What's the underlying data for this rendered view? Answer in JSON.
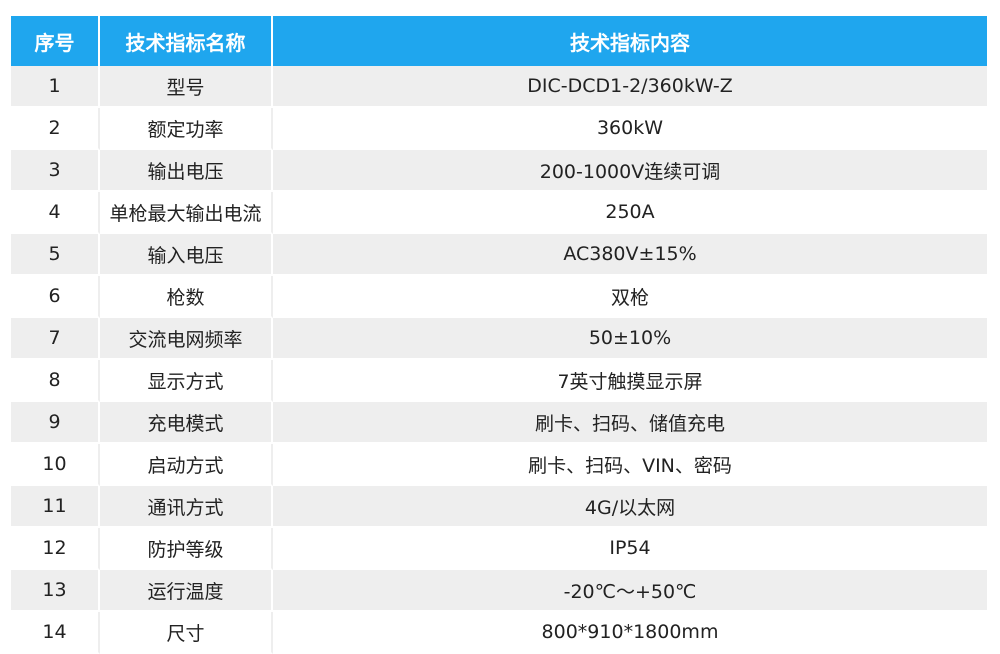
{
  "header": {
    "col_index": "序号",
    "col_name": "技术指标名称",
    "col_content": "技术指标内容"
  },
  "rows": [
    {
      "index": "1",
      "name": "型号",
      "value": "DIC-DCD1-2/360kW-Z"
    },
    {
      "index": "2",
      "name": "额定功率",
      "value": "360kW"
    },
    {
      "index": "3",
      "name": "输出电压",
      "value": "200-1000V连续可调"
    },
    {
      "index": "4",
      "name": "单枪最大输出电流",
      "value": "250A"
    },
    {
      "index": "5",
      "name": "输入电压",
      "value": "AC380V±15%"
    },
    {
      "index": "6",
      "name": "枪数",
      "value": "双枪"
    },
    {
      "index": "7",
      "name": "交流电网频率",
      "value": "50±10%"
    },
    {
      "index": "8",
      "name": "显示方式",
      "value": "7英寸触摸显示屏"
    },
    {
      "index": "9",
      "name": "充电模式",
      "value": "刷卡、扫码、储值充电"
    },
    {
      "index": "10",
      "name": "启动方式",
      "value": "刷卡、扫码、VIN、密码"
    },
    {
      "index": "11",
      "name": "通讯方式",
      "value": "4G/以太网"
    },
    {
      "index": "12",
      "name": "防护等级",
      "value": "IP54"
    },
    {
      "index": "13",
      "name": "运行温度",
      "value": "-20℃～+50℃"
    },
    {
      "index": "14",
      "name": "尺寸",
      "value": "800*910*1800mm"
    }
  ],
  "colors": {
    "header_bg": "#1fa6ee",
    "header_text": "#ffffff",
    "stripe_bg": "#eeeeee",
    "row_bg": "#ffffff",
    "body_text": "#222222"
  }
}
